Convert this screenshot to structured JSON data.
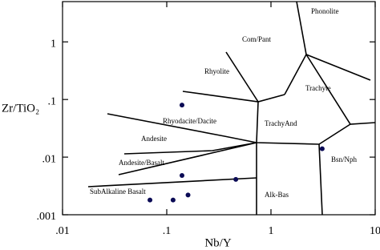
{
  "chart_data": {
    "type": "scatter",
    "x_label": "Nb/Y",
    "y_label": "Zr/TiO₂",
    "xscale": "log",
    "yscale": "log",
    "xlim": [
      0.01,
      10
    ],
    "ylim": [
      0.001,
      5
    ],
    "xticks": [
      {
        "value": 0.01,
        "label": ".01"
      },
      {
        "value": 0.1,
        "label": ".1"
      },
      1,
      10
    ],
    "yticks": [
      {
        "value": 0.001,
        "label": ".001"
      },
      {
        "value": 0.01,
        "label": ".01"
      },
      {
        "value": 0.1,
        "label": ".1"
      },
      1
    ],
    "color": "#0b0b55",
    "x": [
      0.14,
      0.14,
      0.46,
      0.16,
      0.069,
      0.115,
      3.1
    ],
    "values": [
      0.08,
      0.0048,
      0.0041,
      0.0022,
      0.0018,
      0.0018,
      0.014
    ],
    "annotations": [
      "Phonolite",
      "Com/Pant",
      "Rhyolite",
      "Trachyte",
      "Rhyodacite/Dacite",
      "TrachyAnd",
      "Andesite",
      "Bsn/Nph",
      "Andesite/Basalt",
      "SubAlkaline Basalt",
      "Alk-Bas"
    ]
  }
}
